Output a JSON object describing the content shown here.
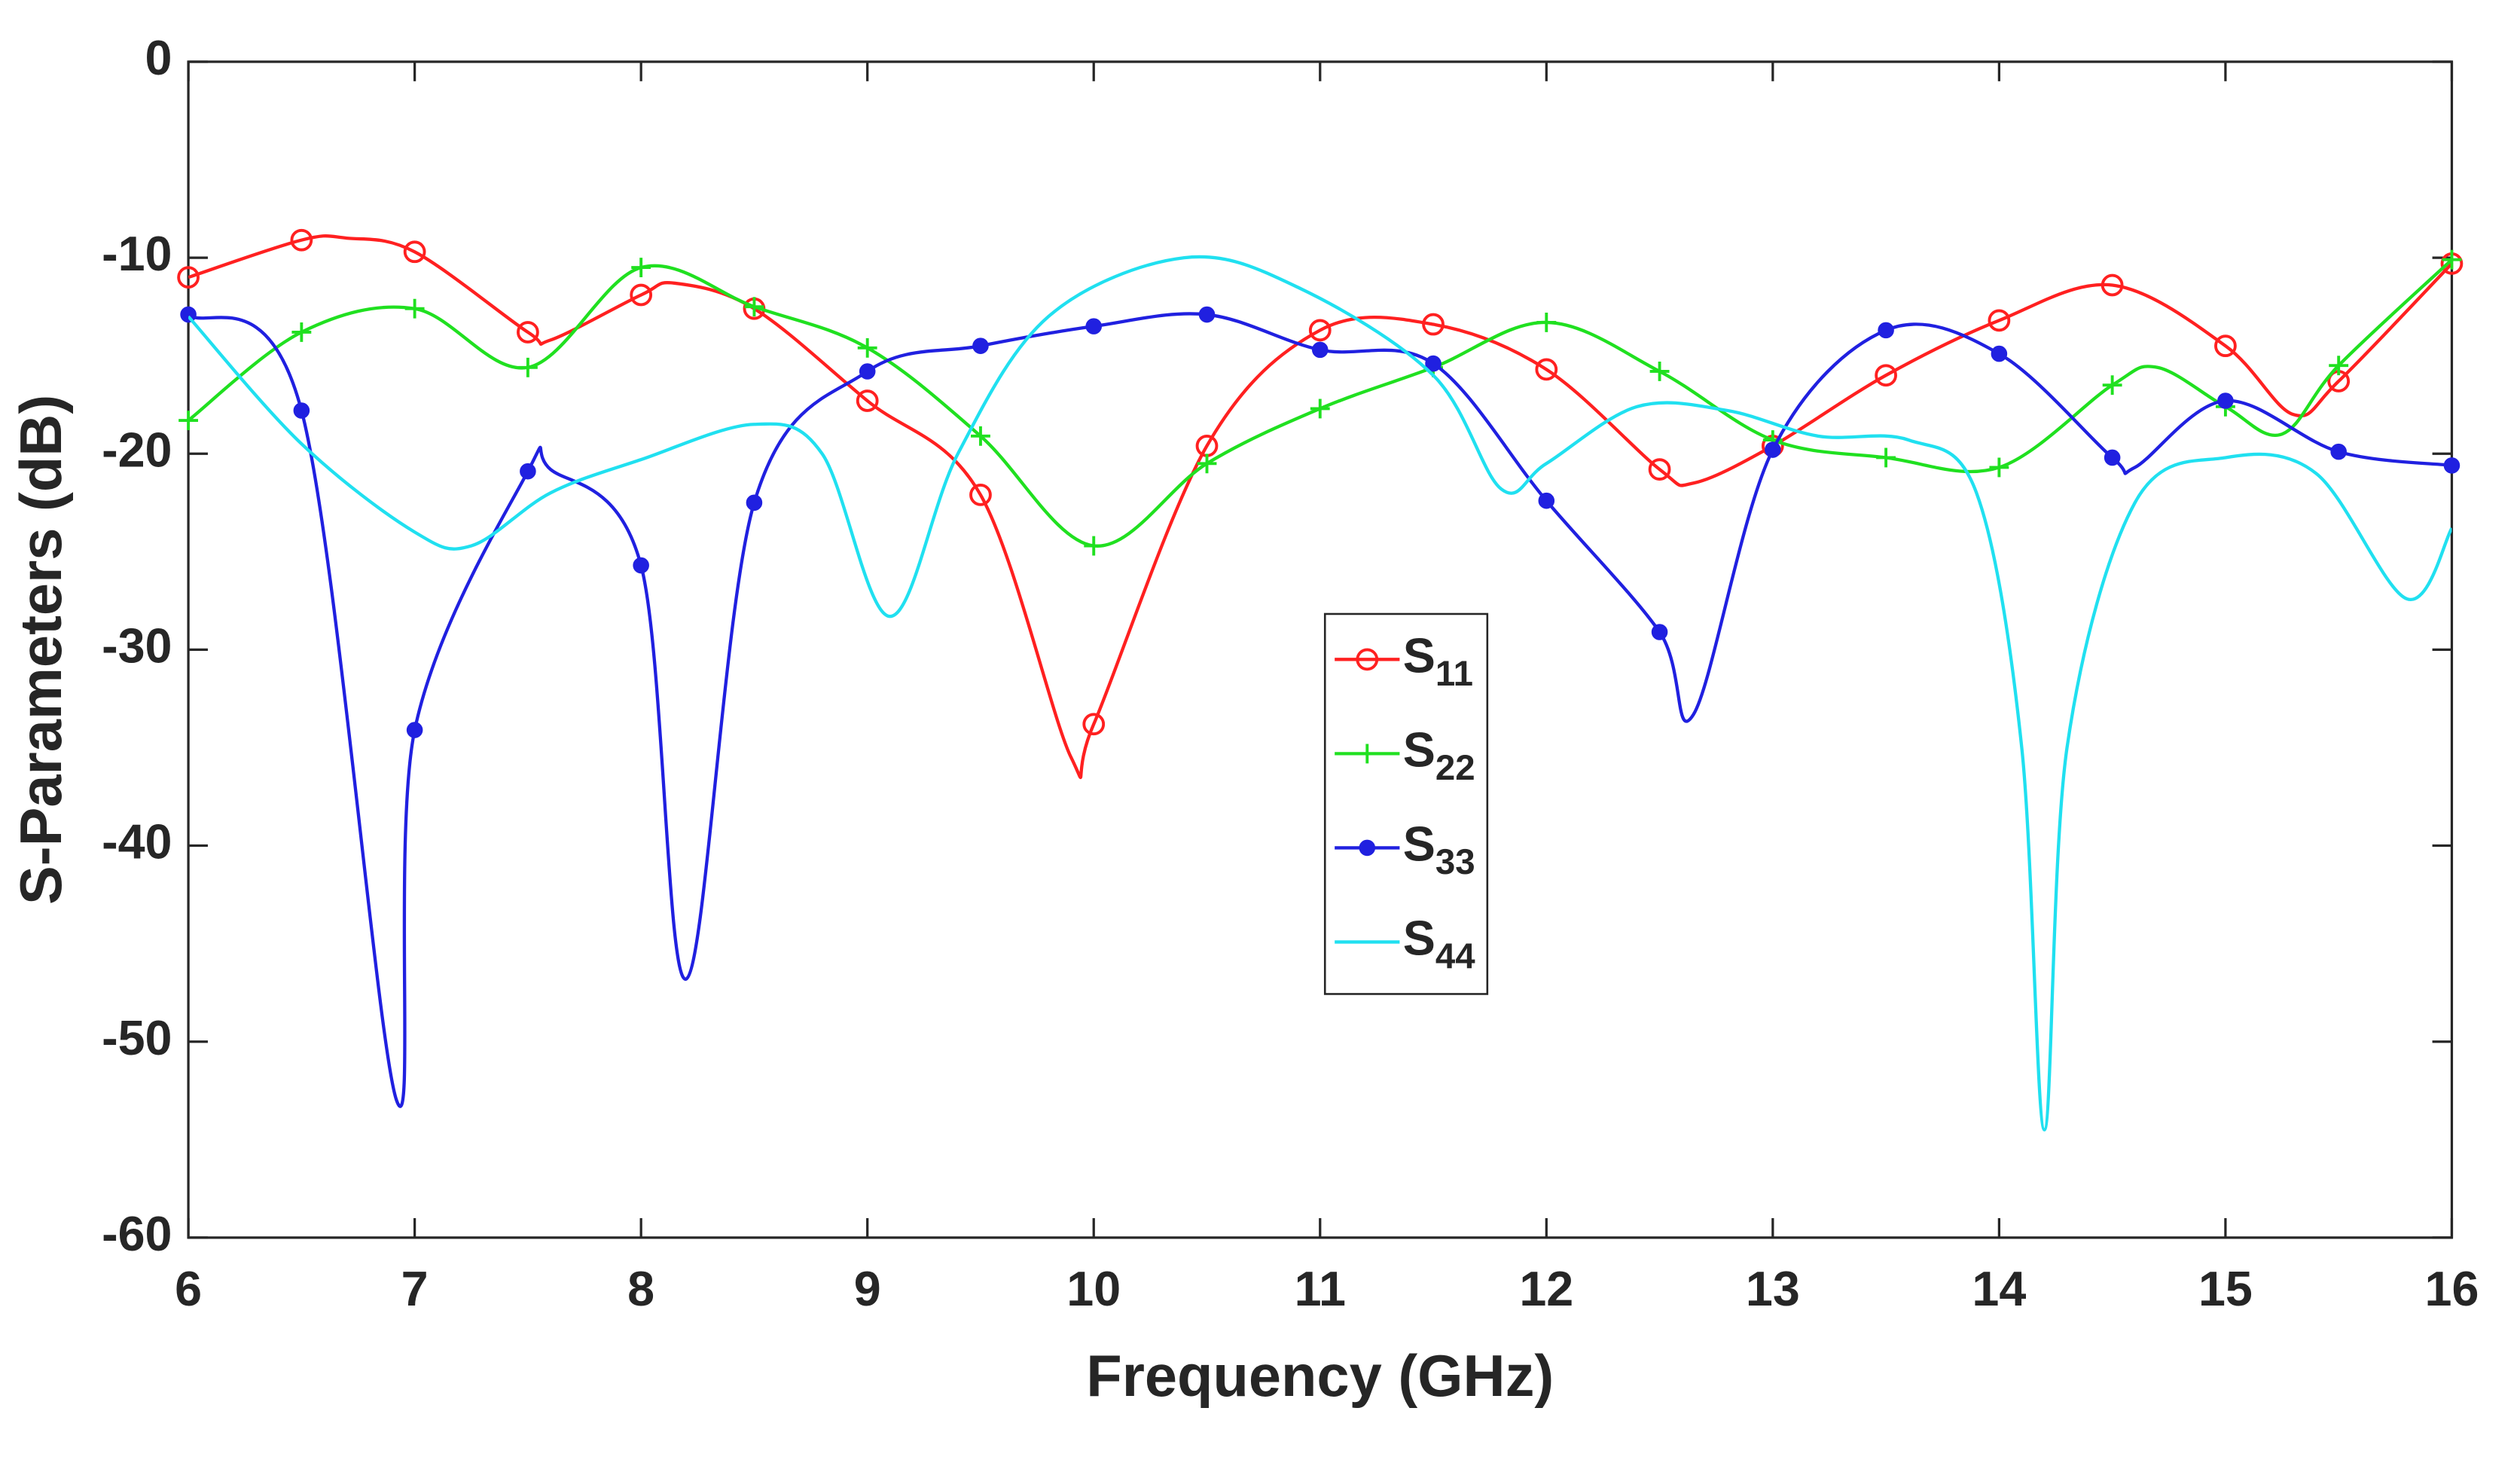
{
  "chart_data": {
    "type": "line",
    "xlabel": "Frequency (GHz)",
    "ylabel": "S-Parameters (dB)",
    "xlim": [
      6,
      16
    ],
    "ylim": [
      -60,
      0
    ],
    "xticks": [
      6,
      7,
      8,
      9,
      10,
      11,
      12,
      13,
      14,
      15,
      16
    ],
    "yticks": [
      -60,
      -50,
      -40,
      -30,
      -20,
      -10,
      0
    ],
    "grid": false,
    "legend": "center",
    "series": [
      {
        "name": "S11",
        "color": "#ff2020",
        "marker": "circle",
        "x": [
          6,
          6.5,
          6.7,
          7,
          7.5,
          7.6,
          8,
          8.15,
          8.5,
          9,
          9.5,
          9.9,
          10,
          10.5,
          11,
          11.5,
          12,
          12.5,
          12.65,
          13,
          13.5,
          14,
          14.5,
          15,
          15.3,
          15.5,
          16
        ],
        "values": [
          -11,
          -9.1,
          -9,
          -9.7,
          -13.8,
          -14.2,
          -11.9,
          -11.3,
          -12.6,
          -17.3,
          -22.1,
          -35.5,
          -33.8,
          -19.6,
          -13.7,
          -13.4,
          -15.7,
          -20.8,
          -21.5,
          -19.6,
          -16,
          -13.2,
          -11.4,
          -14.5,
          -18,
          -16.3,
          -10.3
        ]
      },
      {
        "name": "S22",
        "color": "#20e020",
        "marker": "plus",
        "x": [
          6,
          6.5,
          7,
          7.5,
          8,
          8.5,
          9,
          9.5,
          10,
          10.5,
          11,
          11.5,
          12,
          12.5,
          13,
          13.5,
          14,
          14.5,
          14.7,
          15,
          15.25,
          15.5,
          16
        ],
        "values": [
          -18.3,
          -13.8,
          -12.6,
          -15.6,
          -10.5,
          -12.5,
          -14.6,
          -19.1,
          -24.7,
          -20.5,
          -17.7,
          -15.6,
          -13.3,
          -15.8,
          -19.3,
          -20.2,
          -20.7,
          -16.5,
          -15.6,
          -17.6,
          -19,
          -15.5,
          -10.1
        ]
      },
      {
        "name": "S33",
        "color": "#2020e0",
        "marker": "star",
        "x": [
          6,
          6.5,
          6.92,
          7,
          7.5,
          7.6,
          8,
          8.2,
          8.5,
          9,
          9.5,
          10,
          10.5,
          11,
          11.5,
          12,
          12.5,
          12.65,
          13,
          13.5,
          14,
          14.5,
          14.6,
          15,
          15.5,
          16
        ],
        "values": [
          -12.9,
          -17.8,
          -53,
          -34.1,
          -20.9,
          -20.8,
          -25.7,
          -46.8,
          -22.5,
          -15.8,
          -14.5,
          -13.5,
          -12.9,
          -14.7,
          -15.4,
          -22.4,
          -29.1,
          -33.3,
          -19.8,
          -13.7,
          -14.9,
          -20.2,
          -20.7,
          -17.3,
          -19.9,
          -20.6
        ]
      },
      {
        "name": "S44",
        "color": "#20e0f0",
        "x": [
          6,
          6.5,
          7,
          7.25,
          7.6,
          8,
          8.5,
          8.8,
          9.1,
          9.4,
          9.8,
          10.4,
          10.9,
          11.5,
          11.8,
          12,
          12.4,
          12.8,
          13.2,
          13.6,
          13.9,
          14.1,
          14.2,
          14.3,
          14.6,
          15,
          15.4,
          15.8,
          16
        ],
        "values": [
          -13,
          -19.5,
          -24,
          -24.7,
          -22,
          -20.3,
          -18.5,
          -20,
          -28.3,
          -20,
          -13,
          -10,
          -11.5,
          -16,
          -21.8,
          -20.5,
          -17.6,
          -17.8,
          -19.1,
          -19.3,
          -22,
          -35,
          -54.5,
          -35,
          -22.5,
          -20.2,
          -21,
          -27.4,
          -23.8
        ]
      }
    ]
  }
}
